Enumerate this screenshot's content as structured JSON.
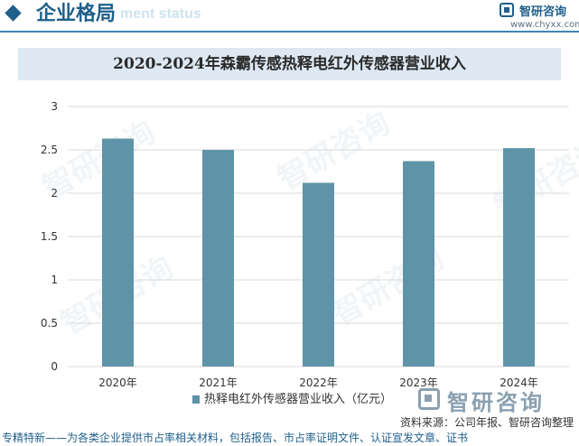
{
  "header": {
    "title": "企业格局",
    "subtitle": "ment status"
  },
  "logo": {
    "name": "智研咨询",
    "url": "www.chyxx.com"
  },
  "watermark_text": "智研咨询",
  "chart_data": {
    "type": "bar",
    "title": "2020-2024年森霸传感热释电红外传感器营业收入",
    "categories": [
      "2020年",
      "2021年",
      "2022年",
      "2023年",
      "2024年"
    ],
    "series": [
      {
        "name": "热释电红外传感器营业收入（亿元）",
        "values": [
          2.63,
          2.5,
          2.12,
          2.37,
          2.52
        ]
      }
    ],
    "yticks": [
      "0",
      "0.5",
      "1",
      "1.5",
      "2",
      "2.5",
      "3"
    ],
    "ylim": [
      0,
      3
    ],
    "grid": true,
    "xlabel": "",
    "ylabel": "",
    "legend_position": "bottom",
    "bar_color": "#5f93a8"
  },
  "legend": {
    "label": "热释电红外传感器营业收入（亿元）"
  },
  "source": "资料来源：公司年报、智研咨询整理",
  "footer": "专精特新——为各类企业提供市占率相关材料，包括报告、市占率证明文件、认证宣发文章、证书"
}
